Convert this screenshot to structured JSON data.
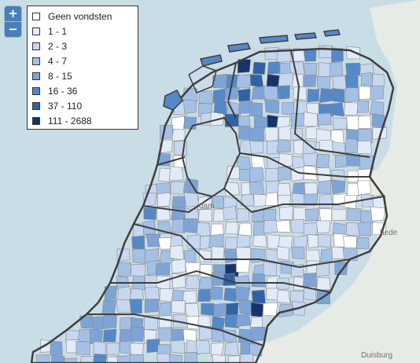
{
  "zoom": {
    "in_label": "+",
    "out_label": "−"
  },
  "legend": {
    "items": [
      {
        "label": "Geen vondsten",
        "color": "#ffffff"
      },
      {
        "label": "1 - 1",
        "color": "#e3ebf7"
      },
      {
        "label": "2 - 3",
        "color": "#c6d7ef"
      },
      {
        "label": "4 - 7",
        "color": "#a4c0e4"
      },
      {
        "label": "8 - 15",
        "color": "#7ea4d6"
      },
      {
        "label": "16 - 36",
        "color": "#5588c6"
      },
      {
        "label": "37 - 110",
        "color": "#2f63a6"
      },
      {
        "label": "111 - 2688",
        "color": "#16336b"
      }
    ]
  },
  "place_labels": {
    "duisburg": "Duisburg",
    "enschede": "hede",
    "amsterdam": "dam"
  },
  "colors": {
    "water": "#c9dde6",
    "land_abroad": "#e6ebe6",
    "border": "#3f3f3f"
  }
}
